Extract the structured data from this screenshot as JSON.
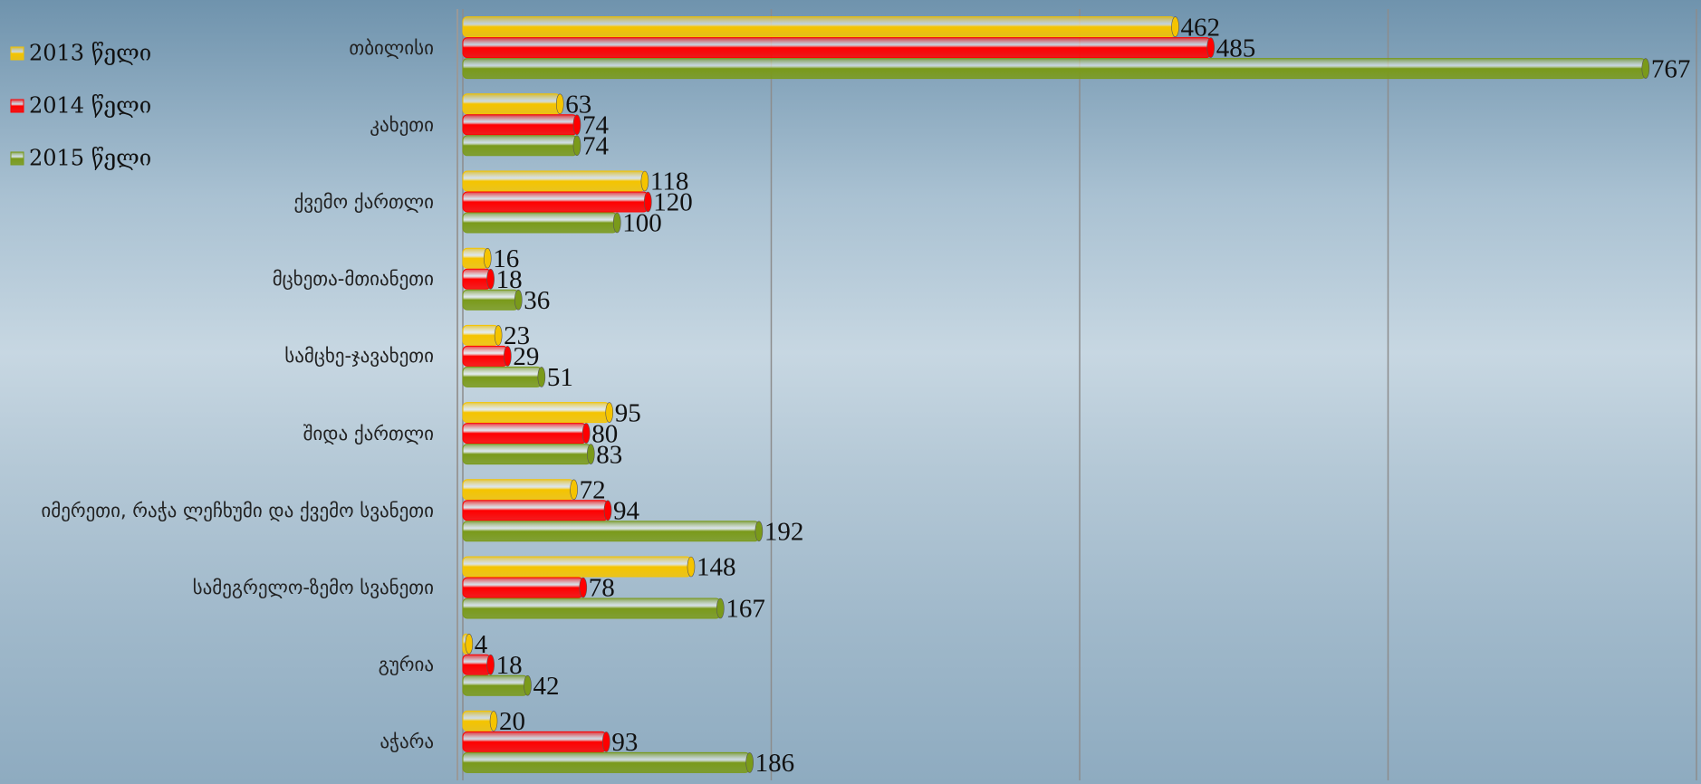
{
  "chart_data": {
    "type": "bar",
    "orientation": "horizontal",
    "categories": [
      "თბილისი",
      "კახეთი",
      "ქვემო ქართლი",
      "მცხეთა-მთიანეთი",
      "სამცხე-ჯავახეთი",
      "შიდა ქართლი",
      "იმერეთი, რაჭა ლეჩხუმი და ქვემო სვანეთი",
      "სამეგრელო-ზემო სვანეთი",
      "გურია",
      "აჭარა"
    ],
    "series": [
      {
        "name": "2013 წელი",
        "color": "#f5c400",
        "values": [
          462,
          63,
          118,
          16,
          23,
          95,
          72,
          148,
          4,
          20
        ]
      },
      {
        "name": "2014 წელი",
        "color": "#ff0000",
        "values": [
          485,
          74,
          120,
          18,
          29,
          80,
          94,
          78,
          18,
          93
        ]
      },
      {
        "name": "2015 წელი",
        "color": "#7a9a1a",
        "values": [
          767,
          74,
          100,
          36,
          51,
          83,
          192,
          167,
          42,
          186
        ]
      }
    ],
    "xlim": [
      0,
      800
    ],
    "xticks": [
      0,
      200,
      400,
      600,
      800
    ],
    "grid": true,
    "legend": "top-left"
  }
}
